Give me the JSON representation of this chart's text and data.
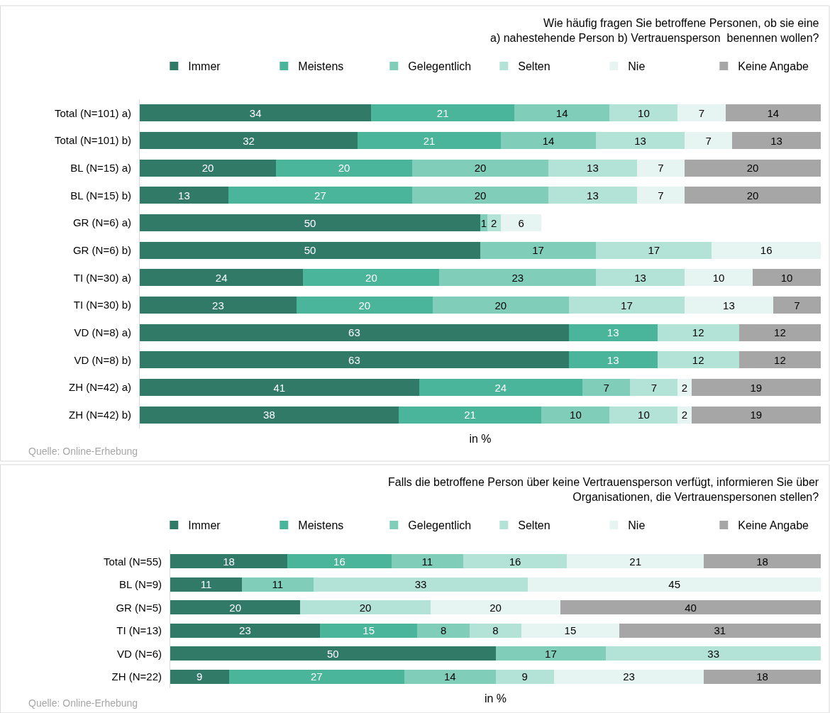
{
  "chart_data": [
    {
      "type": "bar",
      "orientation": "horizontal",
      "stacked": true,
      "data_labels": true,
      "legend": "top",
      "tick_labels": "y",
      "xlim": [
        0,
        100
      ],
      "title": "Wie häufig fragen Sie betroffene Personen, ob sie eine\na) nahestehende Person b) Vertrauensperson  benennen wollen?",
      "xlabel": "in %",
      "annotations": [
        "Quelle: Online-Erhebung"
      ],
      "categories": [
        "Total (N=101) a)",
        "Total (N=101) b)",
        "BL (N=15) a)",
        "BL (N=15) b)",
        "GR (N=6) a)",
        "GR (N=6) b)",
        "TI (N=30) a)",
        "TI (N=30) b)",
        "VD (N=8) a)",
        "VD (N=8) b)",
        "ZH (N=42) a)",
        "ZH (N=42) b)"
      ],
      "series": [
        {
          "name": "Immer",
          "color": "#327a68",
          "values": [
            34,
            32,
            20,
            13,
            50,
            50,
            24,
            23,
            63,
            63,
            41,
            38
          ]
        },
        {
          "name": "Meistens",
          "color": "#4bb59b",
          "values": [
            21,
            21,
            20,
            27,
            null,
            null,
            20,
            20,
            13,
            13,
            24,
            21
          ]
        },
        {
          "name": "Gelegentlich",
          "color": "#80ceb9",
          "values": [
            14,
            14,
            20,
            20,
            1,
            17,
            23,
            20,
            null,
            null,
            7,
            10
          ]
        },
        {
          "name": "Selten",
          "color": "#b3e2d6",
          "values": [
            10,
            13,
            13,
            13,
            2,
            17,
            13,
            17,
            12,
            12,
            7,
            10
          ]
        },
        {
          "name": "Nie",
          "color": "#e6f5f1",
          "values": [
            7,
            7,
            7,
            7,
            6,
            16,
            10,
            13,
            null,
            null,
            2,
            2
          ]
        },
        {
          "name": "Keine Angabe",
          "color": "#a6a6a6",
          "values": [
            14,
            13,
            20,
            20,
            null,
            null,
            10,
            7,
            12,
            12,
            19,
            19
          ]
        }
      ]
    },
    {
      "type": "bar",
      "orientation": "horizontal",
      "stacked": true,
      "data_labels": true,
      "legend": "top",
      "tick_labels": "y",
      "xlim": [
        0,
        100
      ],
      "title": "Falls die betroffene Person über keine Vertrauensperson verfügt, informieren Sie über\nOrganisationen, die Vertrauenspersonen stellen?",
      "xlabel": "in %",
      "annotations": [
        "Quelle: Online-Erhebung"
      ],
      "categories": [
        "Total (N=55)",
        "BL (N=9)",
        "GR (N=5)",
        "TI (N=13)",
        "VD (N=6)",
        "ZH (N=22)"
      ],
      "series": [
        {
          "name": "Immer",
          "color": "#327a68",
          "values": [
            18,
            11,
            20,
            23,
            50,
            9
          ]
        },
        {
          "name": "Meistens",
          "color": "#4bb59b",
          "values": [
            16,
            null,
            null,
            15,
            null,
            27
          ]
        },
        {
          "name": "Gelegentlich",
          "color": "#80ceb9",
          "values": [
            11,
            11,
            null,
            8,
            17,
            14
          ]
        },
        {
          "name": "Selten",
          "color": "#b3e2d6",
          "values": [
            16,
            33,
            20,
            8,
            33,
            9
          ]
        },
        {
          "name": "Nie",
          "color": "#e6f5f1",
          "values": [
            21,
            45,
            20,
            15,
            null,
            23
          ]
        },
        {
          "name": "Keine Angabe",
          "color": "#a6a6a6",
          "values": [
            18,
            null,
            40,
            31,
            null,
            18
          ]
        }
      ]
    }
  ]
}
